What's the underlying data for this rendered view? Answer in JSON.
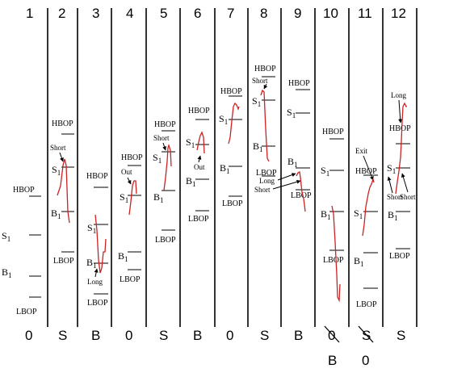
{
  "columns": [
    {
      "number": "1",
      "signal": "0",
      "labels": {
        "hbop": "HBOP",
        "s1": "S",
        "b1": "B",
        "lbop": "LBOP"
      }
    },
    {
      "number": "2",
      "signal": "S",
      "labels": {
        "hbop": "HBOP",
        "s1": "S",
        "b1": "B",
        "lbop": "LBOP",
        "note": "Short"
      }
    },
    {
      "number": "3",
      "signal": "B",
      "labels": {
        "hbop": "HBOP",
        "s1": "S",
        "b1": "B",
        "lbop": "LBOP",
        "note": "Long"
      }
    },
    {
      "number": "4",
      "signal": "0",
      "labels": {
        "hbop": "HBOP",
        "s1": "S",
        "b1": "B",
        "lbop": "LBOP",
        "note": "Out"
      }
    },
    {
      "number": "5",
      "signal": "S",
      "labels": {
        "hbop": "HBOP",
        "s1": "S",
        "b1": "B",
        "lbop": "LBOP",
        "note": "Short"
      }
    },
    {
      "number": "6",
      "signal": "B",
      "labels": {
        "hbop": "HBOP",
        "s1": "S",
        "b1": "B",
        "lbop": "LBOP",
        "note": "Out"
      }
    },
    {
      "number": "7",
      "signal": "0",
      "labels": {
        "hbop": "HBOP",
        "s1": "S",
        "b1": "B",
        "lbop": "LBOP"
      }
    },
    {
      "number": "8",
      "signal": "S",
      "labels": {
        "hbop": "HBOP",
        "s1": "S",
        "b1": "B",
        "lbop": "LBOP",
        "note": "Short"
      }
    },
    {
      "number": "9",
      "signal": "B",
      "labels": {
        "hbop": "HBOP",
        "s1": "S",
        "b1": "B",
        "lbop": "LBOP",
        "note": "Long",
        "note2": "Short"
      }
    },
    {
      "number": "10",
      "signal": "0",
      "signal_below": "B",
      "labels": {
        "hbop": "HBOP",
        "s1": "S",
        "b1": "B",
        "lbop": "LBOP"
      }
    },
    {
      "number": "11",
      "signal": "S",
      "signal_below": "0",
      "labels": {
        "hbop": "HBOP",
        "s1": "S",
        "b1": "B",
        "lbop": "LBOP",
        "note": "Exit",
        "note2": "Short"
      }
    },
    {
      "number": "12",
      "signal": "S",
      "labels": {
        "hbop": "HBOP",
        "s1": "S",
        "b1": "B",
        "lbop": "LBOP",
        "note": "Long",
        "note2": "Short"
      }
    }
  ],
  "subscript": "1",
  "colors": {
    "price": "#cc2222",
    "ink": "#000000",
    "background": "#ffffff"
  }
}
